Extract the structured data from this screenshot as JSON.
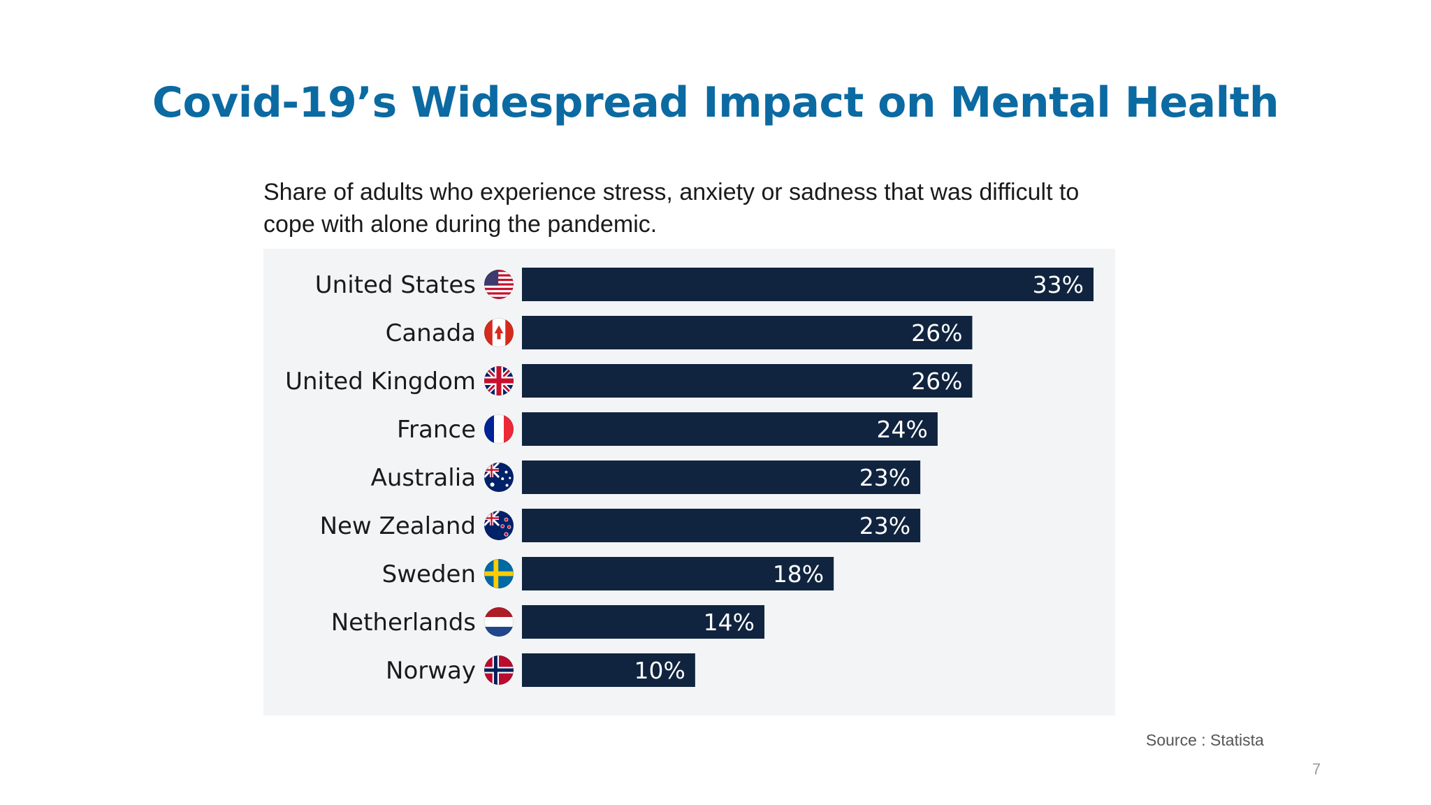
{
  "slide": {
    "title": "Covid-19’s Widespread Impact on Mental Health",
    "source": "Source : Statista",
    "page_number": "7"
  },
  "colors": {
    "title": "#0b6aa2",
    "bar": "#10243f",
    "panel": "#f2f4f6",
    "bar_label": "#ffffff",
    "category_text": "#1a1a1a"
  },
  "chart_data": {
    "type": "bar",
    "orientation": "horizontal",
    "title": "Share of adults who experience stress, anxiety or sadness that was difficult to cope with alone during the pandemic.",
    "categories": [
      "United States",
      "Canada",
      "United Kingdom",
      "France",
      "Australia",
      "New Zealand",
      "Sweden",
      "Netherlands",
      "Norway"
    ],
    "values": [
      33,
      26,
      26,
      24,
      23,
      23,
      18,
      14,
      10
    ],
    "value_labels": [
      "33%",
      "26%",
      "26%",
      "24%",
      "23%",
      "23%",
      "18%",
      "14%",
      "10%"
    ],
    "flags": [
      "us-flag-icon",
      "canada-flag-icon",
      "uk-flag-icon",
      "france-flag-icon",
      "australia-flag-icon",
      "new-zealand-flag-icon",
      "sweden-flag-icon",
      "netherlands-flag-icon",
      "norway-flag-icon"
    ],
    "xlim": [
      0,
      33
    ],
    "grid": false,
    "legend": "none"
  }
}
